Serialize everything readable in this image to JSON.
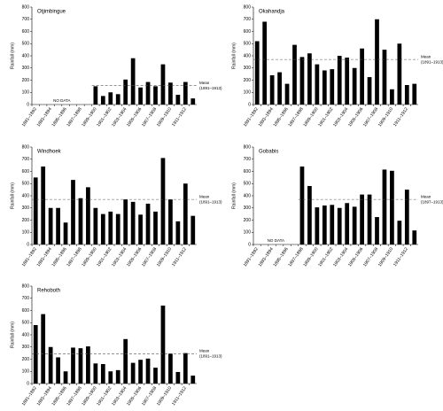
{
  "chart_data": [
    {
      "type": "bar",
      "title": "Otjimbingue",
      "y_label": "Rainfall (mm)",
      "categories": [
        "1891–1892",
        null,
        "1893–1894",
        null,
        "1895–1896",
        null,
        "1897–1898",
        null,
        "1899–1900",
        null,
        "1901–1902",
        null,
        "1903–1904",
        null,
        "1905–1906",
        null,
        "1907–1908",
        null,
        "1909–1910",
        null,
        "1911–1912",
        null
      ],
      "values": [
        null,
        null,
        null,
        null,
        null,
        null,
        null,
        null,
        150,
        70,
        100,
        85,
        205,
        380,
        140,
        185,
        150,
        330,
        180,
        80,
        185,
        50
      ],
      "color": "#000000",
      "ylim": [
        0,
        800
      ],
      "yticks": [
        0,
        100,
        200,
        300,
        400,
        500,
        600,
        700,
        800
      ],
      "mean": 155,
      "mean_label": [
        "Mean",
        "(1891–1913)"
      ],
      "annotation": "NO DATA"
    },
    {
      "type": "bar",
      "title": "Okahandja",
      "y_label": "Rainfall (mm)",
      "categories": [
        "1891–1892",
        null,
        "1893–1894",
        null,
        "1895–1896",
        null,
        "1897–1898",
        null,
        "1899–1900",
        null,
        "1901–1902",
        null,
        "1903–1904",
        null,
        "1905–1906",
        null,
        "1907–1908",
        null,
        "1909–1910",
        null,
        "1911–1912",
        null
      ],
      "values": [
        520,
        680,
        240,
        265,
        170,
        490,
        390,
        420,
        330,
        280,
        290,
        400,
        385,
        300,
        460,
        225,
        700,
        450,
        125,
        500,
        160,
        170
      ],
      "color": "#000000",
      "ylim": [
        0,
        800
      ],
      "yticks": [
        0,
        100,
        200,
        300,
        400,
        500,
        600,
        700,
        800
      ],
      "mean": 370,
      "mean_label": [
        "Mean",
        "(1891–1913)"
      ]
    },
    {
      "type": "bar",
      "title": "Windhoek",
      "y_label": "Rainfall (mm)",
      "categories": [
        "1891–1892",
        null,
        "1893–1894",
        null,
        "1895–1896",
        null,
        "1897–1898",
        null,
        "1899–1900",
        null,
        "1901–1902",
        null,
        "1903–1904",
        null,
        "1905–1906",
        null,
        "1907–1908",
        null,
        "1909–1910",
        null,
        "1911–1912",
        null
      ],
      "values": [
        550,
        640,
        300,
        300,
        180,
        530,
        380,
        470,
        300,
        250,
        270,
        250,
        370,
        350,
        245,
        335,
        270,
        710,
        370,
        190,
        500,
        235
      ],
      "color": "#000000",
      "ylim": [
        0,
        800
      ],
      "yticks": [
        0,
        100,
        200,
        300,
        400,
        500,
        600,
        700,
        800
      ],
      "mean": 370,
      "mean_label": [
        "Mean",
        "(1891–1913)"
      ]
    },
    {
      "type": "bar",
      "title": "Gobabis",
      "y_label": "Rainfall (mm)",
      "categories": [
        "1891–1892",
        null,
        "1893–1894",
        null,
        "1895–1896",
        null,
        "1897–1898",
        null,
        "1899–1900",
        null,
        "1901–1902",
        null,
        "1903–1904",
        null,
        "1905–1906",
        null,
        "1907–1908",
        null,
        "1909–1910",
        null,
        "1911–1912",
        null
      ],
      "values": [
        null,
        null,
        null,
        null,
        null,
        null,
        640,
        480,
        305,
        320,
        325,
        300,
        340,
        310,
        410,
        410,
        225,
        615,
        605,
        195,
        450,
        115
      ],
      "color": "#000000",
      "ylim": [
        0,
        800
      ],
      "yticks": [
        0,
        100,
        200,
        300,
        400,
        500,
        600,
        700,
        800
      ],
      "mean": 370,
      "mean_label": [
        "Mean",
        "(1897–1913)"
      ],
      "annotation": "NO DATA"
    },
    {
      "type": "bar",
      "title": "Rehoboth",
      "y_label": "Rainfall (mm)",
      "categories": [
        "1891–1892",
        null,
        "1893–1894",
        null,
        "1895–1896",
        null,
        "1897–1898",
        null,
        "1899–1900",
        null,
        "1901–1902",
        null,
        "1903–1904",
        null,
        "1905–1906",
        null,
        "1907–1908",
        null,
        "1909–1910",
        null,
        "1911–1912",
        null
      ],
      "values": [
        480,
        570,
        300,
        215,
        100,
        295,
        290,
        305,
        165,
        160,
        100,
        110,
        365,
        170,
        195,
        205,
        130,
        640,
        245,
        95,
        250,
        65
      ],
      "color": "#000000",
      "ylim": [
        0,
        800
      ],
      "yticks": [
        0,
        100,
        200,
        300,
        400,
        500,
        600,
        700,
        800
      ],
      "mean": 245,
      "mean_label": [
        "Mean",
        "(1891–1913)"
      ]
    }
  ]
}
